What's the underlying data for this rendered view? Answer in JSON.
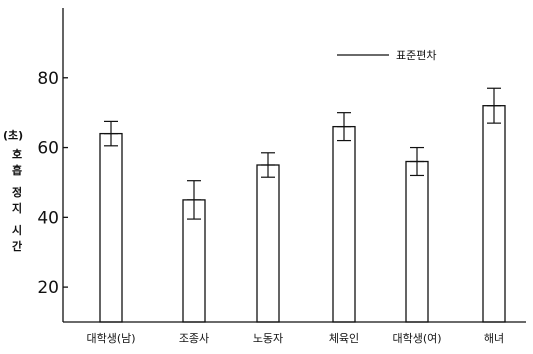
{
  "chart_data": {
    "type": "bar",
    "categories": [
      "대학생(남)",
      "조종사",
      "노동자",
      "체육인",
      "대학생(여)",
      "해녀"
    ],
    "series": [
      {
        "values": [
          64,
          45,
          55,
          66,
          56,
          72
        ],
        "errors": [
          3.5,
          5.5,
          3.5,
          4,
          4,
          5
        ]
      }
    ],
    "ylabel_unit": "(초)",
    "ylabel_chars": [
      "호",
      "흡",
      "정",
      "지",
      "시",
      "간"
    ],
    "yticks": [
      20,
      40,
      60,
      80
    ],
    "ylim": [
      10,
      100
    ],
    "legend": {
      "label": "표준편차",
      "placement": "top-right"
    },
    "grid": false
  },
  "colors": {
    "ink": "#111111",
    "background": "#ffffff"
  }
}
